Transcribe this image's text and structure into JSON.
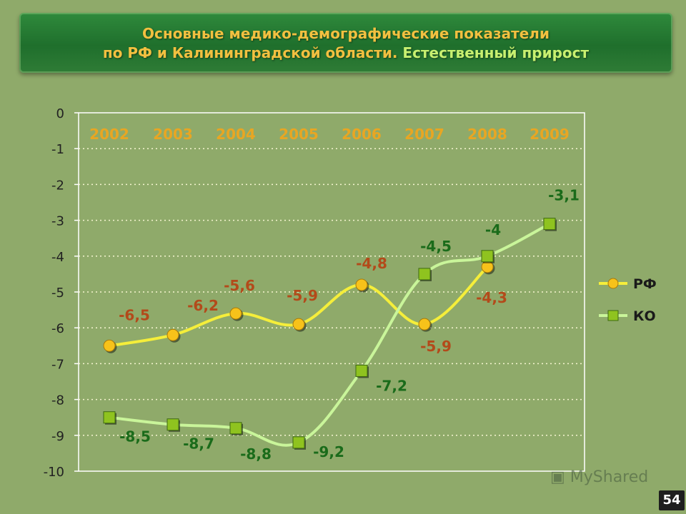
{
  "slide": {
    "title_line1": "Основные медико-демографические показатели",
    "title_line2_a": "по РФ и Калининградской области. ",
    "title_line2_b": "Естественный прирост",
    "watermark": "MyShared",
    "page_number": "54"
  },
  "chart_data": {
    "type": "line",
    "title": "",
    "xlabel": "",
    "ylabel": "",
    "categories": [
      "2002",
      "2003",
      "2004",
      "2005",
      "2006",
      "2007",
      "2008",
      "2009"
    ],
    "ylim": [
      -10,
      0
    ],
    "yticks": [
      "0",
      "-1",
      "-2",
      "-3",
      "-4",
      "-5",
      "-6",
      "-7",
      "-8",
      "-9",
      "-10"
    ],
    "grid": "horizontal-dashed",
    "legend_position": "right",
    "series": [
      {
        "name": "РФ",
        "marker": "circle",
        "color": "#f5ee3a",
        "marker_color": "#f7c21a",
        "label_color": "#b34a1a",
        "values": [
          -6.5,
          -6.2,
          -5.6,
          -5.9,
          -4.8,
          -5.9,
          -4.3,
          null
        ],
        "labels": [
          "-6,5",
          "-6,2",
          "-5,6",
          "-5,9",
          "-4,8",
          "-5,9",
          "-4,3",
          ""
        ]
      },
      {
        "name": "КО",
        "marker": "square",
        "color": "#c9f59a",
        "marker_color": "#8fc31f",
        "label_color": "#1a6b1a",
        "values": [
          -8.5,
          -8.7,
          -8.8,
          -9.2,
          -7.2,
          -4.5,
          -4.0,
          -3.1
        ],
        "labels": [
          "-8,5",
          "-8,7",
          "-8,8",
          "-9,2",
          "-7,2",
          "-4,5",
          "-4",
          "-3,1"
        ]
      }
    ]
  }
}
